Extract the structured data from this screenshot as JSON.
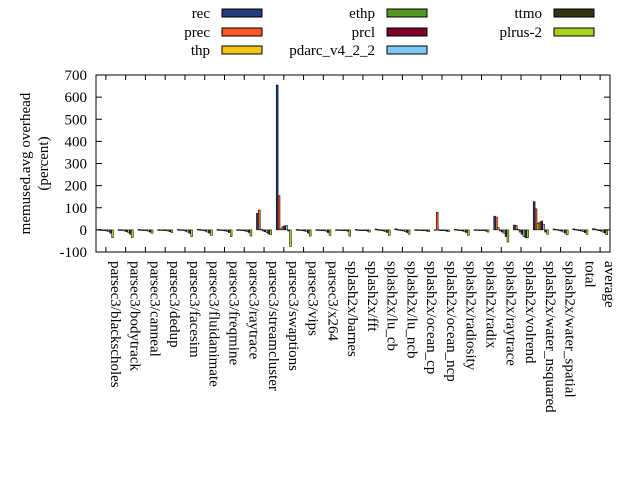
{
  "chart_data": {
    "type": "bar",
    "title": "",
    "xlabel": "",
    "ylabel": "memused.avg overhead",
    "ylabel_unit": "(percent)",
    "ylim": [
      -100,
      700
    ],
    "yticks": [
      -100,
      0,
      100,
      200,
      300,
      400,
      500,
      600,
      700
    ],
    "grid": false,
    "legend_position": "top",
    "categories": [
      "parsec3/blackscholes",
      "parsec3/bodytrack",
      "parsec3/canneal",
      "parsec3/dedup",
      "parsec3/facesim",
      "parsec3/fluidanimate",
      "parsec3/freqmine",
      "parsec3/raytrace",
      "parsec3/streamcluster",
      "parsec3/swaptions",
      "parsec3/vips",
      "parsec3/x264",
      "splash2x/barnes",
      "splash2x/fft",
      "splash2x/lu_cb",
      "splash2x/lu_ncb",
      "splash2x/ocean_cp",
      "splash2x/ocean_ncp",
      "splash2x/radiosity",
      "splash2x/radix",
      "splash2x/raytrace",
      "splash2x/volrend",
      "splash2x/water_nsquared",
      "splash2x/water_spatial",
      "total",
      "average"
    ],
    "series": [
      {
        "name": "rec",
        "color": "#1f3c74",
        "values": [
          2,
          1,
          2,
          1,
          2,
          3,
          2,
          1,
          75,
          655,
          2,
          1,
          1,
          2,
          4,
          5,
          1,
          1,
          3,
          1,
          62,
          22,
          128,
          4,
          5,
          6
        ]
      },
      {
        "name": "prec",
        "color": "#ff5522",
        "values": [
          1,
          1,
          1,
          1,
          1,
          2,
          1,
          1,
          90,
          155,
          1,
          1,
          1,
          1,
          2,
          3,
          1,
          80,
          2,
          1,
          58,
          20,
          95,
          3,
          3,
          4
        ]
      },
      {
        "name": "thp",
        "color": "#f5c518",
        "values": [
          0,
          -2,
          0,
          0,
          1,
          1,
          0,
          0,
          3,
          5,
          0,
          0,
          0,
          0,
          1,
          1,
          0,
          1,
          0,
          0,
          10,
          3,
          30,
          2,
          2,
          2
        ]
      },
      {
        "name": "ethp",
        "color": "#559922",
        "values": [
          -3,
          -5,
          -2,
          -2,
          -3,
          -3,
          -3,
          -3,
          -5,
          15,
          -3,
          -2,
          -2,
          -2,
          -3,
          -3,
          -2,
          -2,
          -3,
          -2,
          -5,
          -10,
          35,
          -4,
          -3,
          -4
        ]
      },
      {
        "name": "prcl",
        "color": "#7f0029",
        "values": [
          -5,
          -8,
          -4,
          -3,
          -6,
          -6,
          -5,
          -5,
          -8,
          18,
          -5,
          -4,
          -3,
          -3,
          -5,
          -5,
          -3,
          -3,
          -5,
          -3,
          -10,
          -20,
          40,
          -6,
          -5,
          -6
        ]
      },
      {
        "name": "pdarc_v4_2_2",
        "color": "#7dc7f5",
        "values": [
          -8,
          -12,
          -6,
          -5,
          -10,
          -10,
          -8,
          -8,
          -12,
          20,
          -8,
          -6,
          -4,
          -4,
          -8,
          -8,
          -4,
          -4,
          -8,
          -4,
          -15,
          -30,
          25,
          -10,
          -8,
          -10
        ]
      },
      {
        "name": "ttmo",
        "color": "#333314",
        "values": [
          -15,
          -20,
          -10,
          -8,
          -15,
          -15,
          -12,
          -12,
          -18,
          -5,
          -15,
          -12,
          -6,
          -6,
          -12,
          -12,
          -6,
          -6,
          -12,
          -6,
          -30,
          -35,
          -10,
          -15,
          -12,
          -14
        ]
      },
      {
        "name": "plrus-2",
        "color": "#a8d41c",
        "values": [
          -35,
          -35,
          -15,
          -12,
          -30,
          -25,
          -30,
          -28,
          -22,
          -75,
          -28,
          -25,
          -28,
          -10,
          -25,
          -20,
          -8,
          -8,
          -25,
          -10,
          -55,
          -35,
          -20,
          -22,
          -20,
          -22
        ]
      }
    ]
  }
}
